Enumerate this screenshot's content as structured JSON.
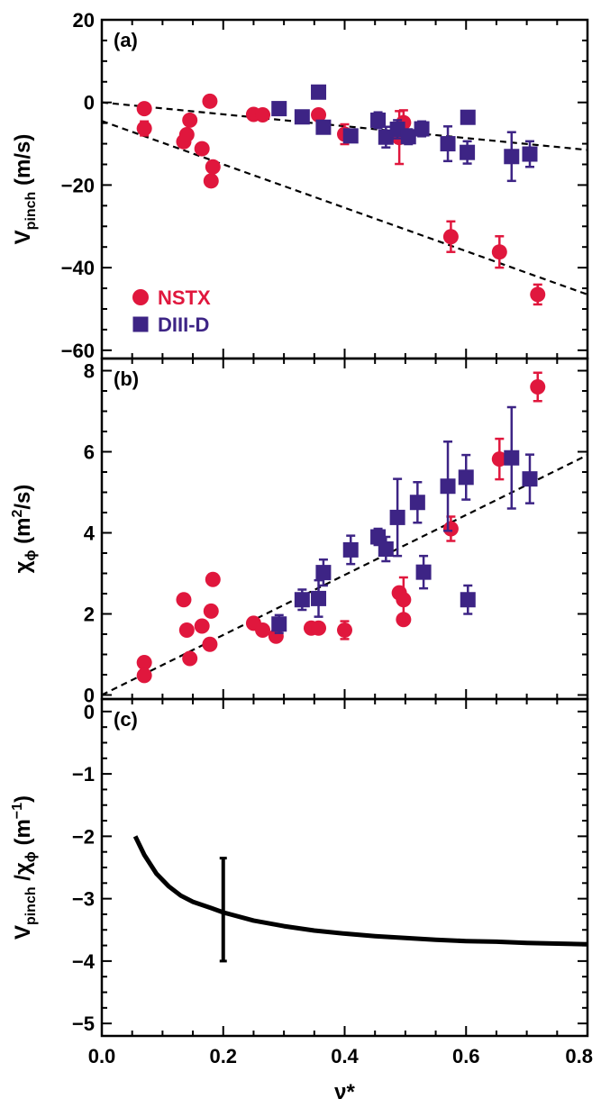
{
  "colors": {
    "nstx": "#e0173d",
    "diiid": "#3d2485",
    "axis": "#000000",
    "fit": "#000000"
  },
  "xaxis": {
    "label": "ν*",
    "ticks": [
      "0.0",
      "0.2",
      "0.4",
      "0.6",
      "0.8"
    ],
    "lim": [
      0.0,
      0.8
    ]
  },
  "legend": {
    "placement": "lower-left of panel (a)",
    "entries": [
      {
        "name": "NSTX",
        "marker": "circle"
      },
      {
        "name": "DIII-D",
        "marker": "square"
      }
    ]
  },
  "chart_data": [
    {
      "type": "scatter",
      "panel": "(a)",
      "ylabel": "V",
      "ylabel_sub": "pinch",
      "ylabel_unit": " (m/s)",
      "ylim": [
        -62,
        20
      ],
      "yticks": [
        "20",
        "0",
        "−20",
        "−40",
        "−60"
      ],
      "series": [
        {
          "name": "NSTX",
          "x": [
            0.07,
            0.07,
            0.135,
            0.14,
            0.145,
            0.165,
            0.178,
            0.18,
            0.183,
            0.25,
            0.265,
            0.357,
            0.4,
            0.49,
            0.497,
            0.575,
            0.655,
            0.718
          ],
          "y": [
            -1.5,
            -6.3,
            -9.5,
            -7.8,
            -4.3,
            -11.2,
            0.3,
            -19.0,
            -15.6,
            -2.9,
            -3.0,
            -3.0,
            -7.7,
            -8.5,
            -4.9,
            -32.5,
            -36.2,
            -46.5
          ],
          "err": [
            0.8,
            1.7,
            0.5,
            0.5,
            0.5,
            0.5,
            0.5,
            0.5,
            0.5,
            0.5,
            0.5,
            0.5,
            2.4,
            6.4,
            3.0,
            3.7,
            3.8,
            2.4
          ]
        },
        {
          "name": "DIII-D",
          "x": [
            0.292,
            0.33,
            0.357,
            0.365,
            0.41,
            0.455,
            0.468,
            0.487,
            0.505,
            0.527,
            0.57,
            0.602,
            0.603,
            0.675,
            0.705
          ],
          "y": [
            -1.5,
            -3.5,
            2.5,
            -6.0,
            -8.1,
            -4.3,
            -8.4,
            -6.5,
            -8.3,
            -6.4,
            -10.0,
            -12.1,
            -3.6,
            -13.1,
            -12.5
          ],
          "err": [
            0.5,
            0.8,
            0.5,
            1.4,
            0.5,
            1.9,
            2.5,
            2.2,
            1.8,
            1.8,
            4.2,
            2.7,
            1.3,
            5.9,
            3.1
          ]
        }
      ],
      "fits": [
        {
          "x": [
            0.0,
            0.8
          ],
          "y": [
            0.0,
            -11.5
          ]
        },
        {
          "x": [
            0.0,
            0.8
          ],
          "y": [
            -4.5,
            -46.5
          ]
        }
      ]
    },
    {
      "type": "scatter",
      "panel": "(b)",
      "ylabel": "χ",
      "ylabel_sub": "ϕ",
      "ylabel_unit": " (m",
      "ylabel_sup": "2",
      "ylabel_unit2": "/s)",
      "ylim": [
        -0.1,
        8.3
      ],
      "yticks": [
        "8",
        "6",
        "4",
        "2",
        "0"
      ],
      "series": [
        {
          "name": "NSTX",
          "x": [
            0.07,
            0.07,
            0.135,
            0.14,
            0.145,
            0.165,
            0.178,
            0.18,
            0.183,
            0.25,
            0.265,
            0.287,
            0.345,
            0.357,
            0.4,
            0.49,
            0.497,
            0.497,
            0.575,
            0.655,
            0.718
          ],
          "y": [
            0.8,
            0.48,
            2.35,
            1.6,
            0.9,
            1.7,
            1.25,
            2.07,
            2.85,
            1.77,
            1.6,
            1.45,
            1.65,
            1.65,
            1.6,
            2.52,
            1.86,
            2.35,
            4.1,
            5.82,
            7.6
          ],
          "err": [
            0.05,
            0.05,
            0.05,
            0.05,
            0.05,
            0.05,
            0.05,
            0.05,
            0.05,
            0.05,
            0.05,
            0.05,
            0.05,
            0.05,
            0.22,
            0.05,
            0.05,
            0.55,
            0.3,
            0.5,
            0.35
          ]
        },
        {
          "name": "DIII-D",
          "x": [
            0.292,
            0.33,
            0.357,
            0.365,
            0.41,
            0.455,
            0.468,
            0.487,
            0.52,
            0.53,
            0.57,
            0.6,
            0.603,
            0.675,
            0.705
          ],
          "y": [
            1.75,
            2.35,
            2.38,
            3.02,
            3.58,
            3.9,
            3.6,
            4.38,
            4.75,
            3.03,
            5.15,
            5.37,
            2.35,
            5.85,
            5.33
          ],
          "err": [
            0.22,
            0.25,
            0.45,
            0.32,
            0.35,
            0.2,
            0.3,
            0.95,
            0.5,
            0.4,
            1.1,
            0.55,
            0.35,
            1.25,
            0.6
          ]
        }
      ],
      "fits": [
        {
          "x": [
            0.0,
            0.8
          ],
          "y": [
            0.0,
            5.92
          ]
        }
      ]
    },
    {
      "type": "line",
      "panel": "(c)",
      "ylabel": "V",
      "ylabel_sub": "pinch",
      "ylabel_mid": " /χ",
      "ylabel_sub2": "ϕ",
      "ylabel_unit": " (m",
      "ylabel_sup": "−1",
      "ylabel_unit2": ")",
      "ylim": [
        -5.2,
        0.2
      ],
      "yticks": [
        "0",
        "−1",
        "−2",
        "−3",
        "−4",
        "−5"
      ],
      "series": [
        {
          "x": [
            0.055,
            0.07,
            0.09,
            0.11,
            0.13,
            0.15,
            0.18,
            0.2,
            0.25,
            0.3,
            0.35,
            0.4,
            0.45,
            0.5,
            0.55,
            0.6,
            0.65,
            0.7,
            0.75,
            0.8
          ],
          "y": [
            -2.0,
            -2.3,
            -2.6,
            -2.8,
            -2.95,
            -3.05,
            -3.15,
            -3.22,
            -3.35,
            -3.44,
            -3.51,
            -3.56,
            -3.6,
            -3.63,
            -3.66,
            -3.68,
            -3.69,
            -3.71,
            -3.72,
            -3.73
          ]
        }
      ],
      "errorbar": {
        "x": 0.2,
        "y_low": -4.0,
        "y_high": -2.35
      }
    }
  ]
}
